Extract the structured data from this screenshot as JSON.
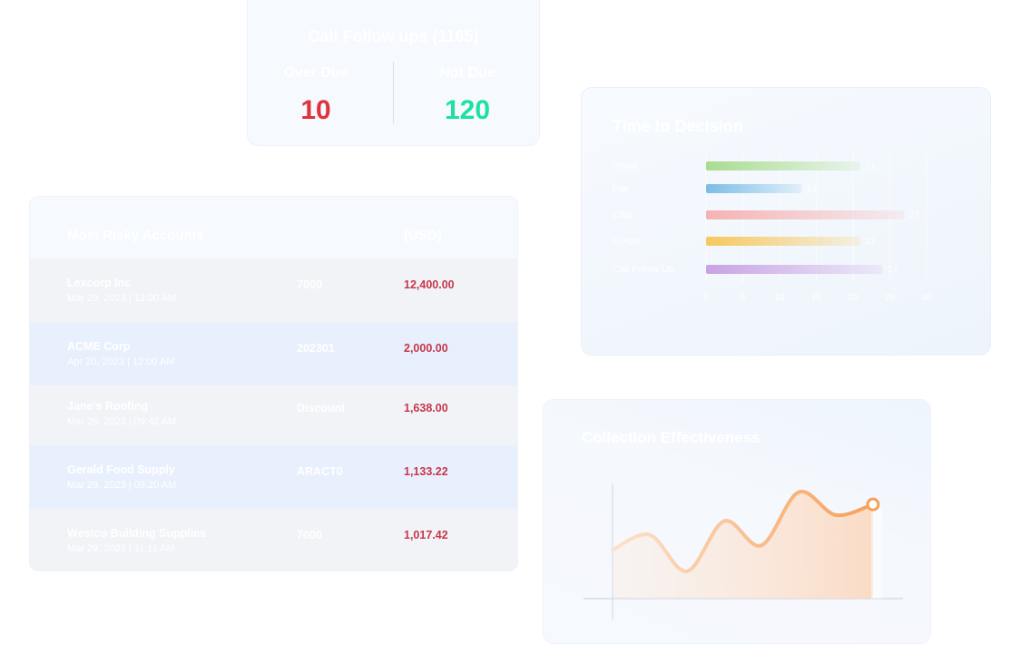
{
  "followups": {
    "title": "Call Follow ups (1165)",
    "overdue_label": "Over Due",
    "overdue_value": "10",
    "notdue_label": "Not Due",
    "notdue_value": "120",
    "overdue_color": "#e0323a",
    "notdue_color": "#1ee0a1"
  },
  "risky": {
    "title": "Most Risky Accounts",
    "currency_header": "(USD)",
    "rows": [
      {
        "name": "Lexcorp Inc",
        "date": "Mar 29, 2023 | 12:00 AM",
        "ref": "7000",
        "amount": "12,400.00"
      },
      {
        "name": "ACME Corp",
        "date": "Apr 20, 2023 | 12:00 AM",
        "ref": "202301",
        "amount": "2,000.00"
      },
      {
        "name": "Jane's Roofing",
        "date": "Mar 26, 2023 | 09:42 AM",
        "ref": "Discount",
        "amount": "1,638.00"
      },
      {
        "name": "Gerald Food Supply",
        "date": "Mar 29, 2023 | 09:20 AM",
        "ref": "ARACT0",
        "amount": "1,133.22"
      },
      {
        "name": "Westco Building Supplies",
        "date": "Mar 29, 2023 | 11:11 AM",
        "ref": "7000",
        "amount": "1,017.42"
      }
    ]
  },
  "ttd": {
    "title": "Time to Decision",
    "chart_data": {
      "type": "bar",
      "orientation": "horizontal",
      "categories": [
        "Email",
        "Fax",
        "Chat",
        "In App",
        "Call Follow Up"
      ],
      "values": [
        21,
        13,
        27,
        21,
        24
      ],
      "value_labels": [
        "21",
        "13",
        "27",
        "21",
        "24"
      ],
      "colors": [
        "#a9dc8f",
        "#7cbde6",
        "#f6b2b2",
        "#f6c85f",
        "#c9a2e3"
      ],
      "xlim": [
        0,
        30
      ],
      "xticks": [
        "0",
        "5",
        "10",
        "15",
        "20",
        "25",
        "30"
      ]
    }
  },
  "ce": {
    "title": "Collection Effectiveness",
    "chart_data": {
      "type": "area",
      "x": [
        0,
        1,
        2,
        3,
        4,
        5,
        6,
        7
      ],
      "values": [
        32,
        42,
        18,
        51,
        35,
        70,
        55,
        62
      ],
      "ylim": [
        0,
        80
      ],
      "line_color": "#f5a05a",
      "fill_color": "#fbd8bf"
    }
  }
}
